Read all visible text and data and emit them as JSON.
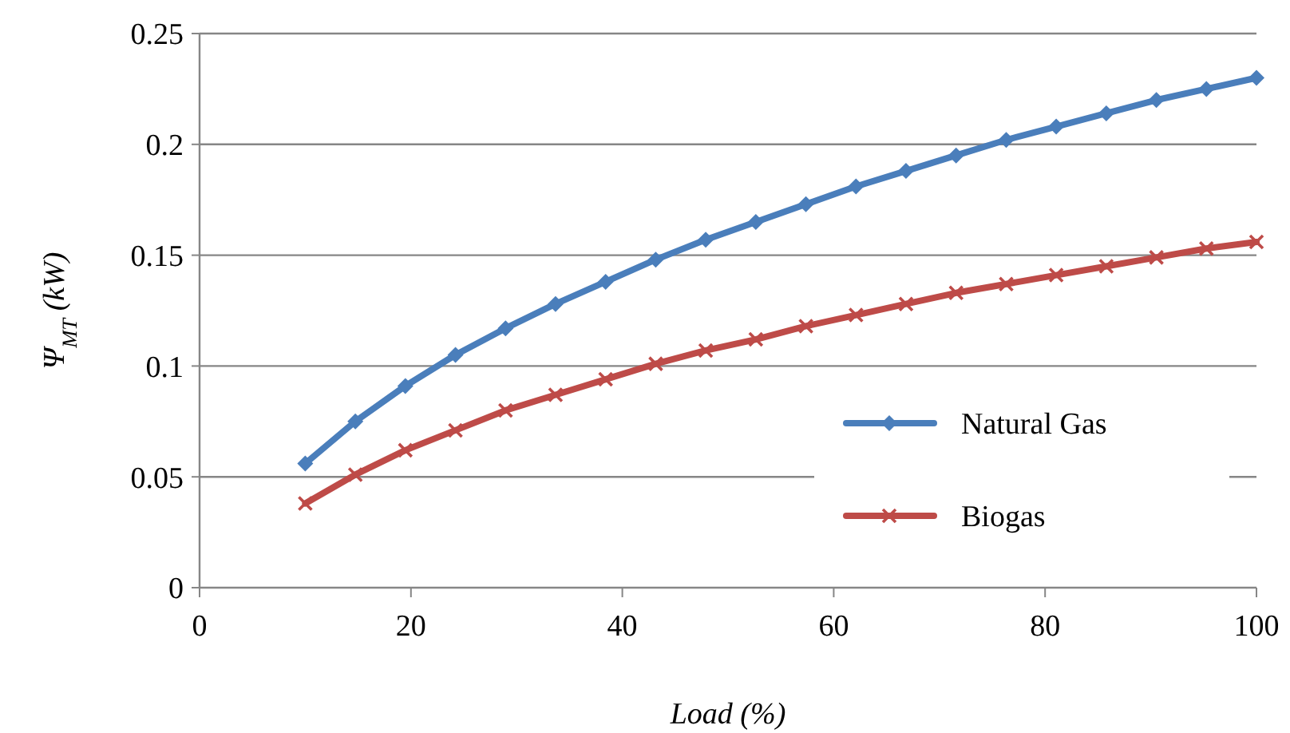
{
  "chart_data": {
    "type": "line",
    "xlabel": "Load (%)",
    "ylabel": "Ψ$_{MT}$ (kW)",
    "x": [
      10,
      14.74,
      19.47,
      24.21,
      28.95,
      33.68,
      38.42,
      43.16,
      47.89,
      52.63,
      57.37,
      62.11,
      66.84,
      71.58,
      76.32,
      81.05,
      85.79,
      90.53,
      95.26,
      100
    ],
    "series": [
      {
        "name": "Natural Gas",
        "color": "#4a7ebb",
        "marker": "diamond",
        "values": [
          0.056,
          0.075,
          0.091,
          0.105,
          0.117,
          0.128,
          0.138,
          0.148,
          0.157,
          0.165,
          0.173,
          0.181,
          0.188,
          0.195,
          0.202,
          0.208,
          0.214,
          0.22,
          0.225,
          0.23
        ]
      },
      {
        "name": "Biogas",
        "color": "#be4b48",
        "marker": "cross",
        "values": [
          0.038,
          0.051,
          0.062,
          0.071,
          0.08,
          0.087,
          0.094,
          0.101,
          0.107,
          0.112,
          0.118,
          0.123,
          0.128,
          0.133,
          0.137,
          0.141,
          0.145,
          0.149,
          0.153,
          0.156
        ]
      }
    ],
    "xlim": [
      0,
      100
    ],
    "xticks": [
      0,
      20,
      40,
      60,
      80,
      100
    ],
    "ylim": [
      0,
      0.25
    ],
    "yticks": [
      0,
      0.05,
      0.1,
      0.15,
      0.2,
      0.25
    ],
    "grid": "y",
    "legend": "bottom right"
  }
}
